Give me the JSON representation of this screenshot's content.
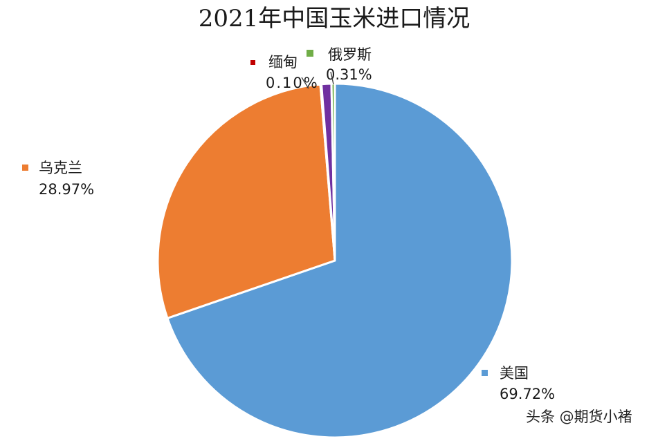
{
  "chart_data": {
    "type": "pie",
    "title": "2021年中国玉米进口情况",
    "slices": [
      {
        "label": "美国",
        "value": 69.72,
        "display": "69.72%",
        "color": "#5b9bd5"
      },
      {
        "label": "乌克兰",
        "value": 28.97,
        "display": "28.97%",
        "color": "#ed7d31"
      },
      {
        "label": "缅甸",
        "value": 0.1,
        "display": "0.10%",
        "color": "#c00000"
      },
      {
        "label": "",
        "value": 0.9,
        "display": "",
        "color": "#7030a0"
      },
      {
        "label": "俄罗斯",
        "value": 0.31,
        "display": "0.31%",
        "color": "#70ad47"
      }
    ],
    "start": "12 o'clock",
    "direction": "clockwise",
    "grid": false
  },
  "watermark": {
    "text": "头条 @期货小褚"
  }
}
